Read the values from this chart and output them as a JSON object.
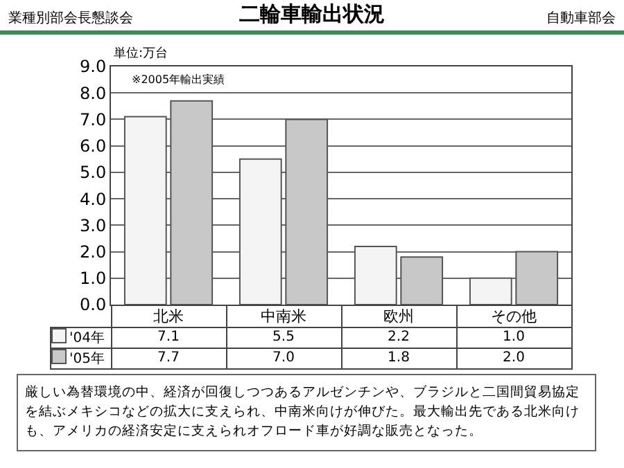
{
  "chart_data": {
    "type": "bar",
    "title": "二輪車輸出状況",
    "categories": [
      "北米",
      "中南米",
      "欧州",
      "その他"
    ],
    "series": [
      {
        "name": "'04年",
        "color": "#f4f4f4",
        "values": [
          7.1,
          5.5,
          2.2,
          1.0
        ],
        "value_labels": [
          "7.1",
          "5.5",
          "2.2",
          "1.0"
        ]
      },
      {
        "name": "'05年",
        "color": "#c8c8c8",
        "values": [
          7.7,
          7.0,
          1.8,
          2.0
        ],
        "value_labels": [
          "7.7",
          "7.0",
          "1.8",
          "2.0"
        ]
      }
    ],
    "ylabel": "単位:万台",
    "ylim": [
      0,
      9
    ],
    "yticks": [
      {
        "value": 0,
        "label": "0.0"
      },
      {
        "value": 1,
        "label": "1.0"
      },
      {
        "value": 2,
        "label": "2.0"
      },
      {
        "value": 3,
        "label": "3.0"
      },
      {
        "value": 4,
        "label": "4.0"
      },
      {
        "value": 5,
        "label": "5.0"
      },
      {
        "value": 6,
        "label": "6.0"
      },
      {
        "value": 7,
        "label": "7.0"
      },
      {
        "value": 8,
        "label": "8.0"
      },
      {
        "value": 9,
        "label": "9.0"
      }
    ],
    "grid": "y",
    "legend": "bottom left",
    "annotations": [
      "業種別部会長懇談会",
      "自動車部会",
      "※2005年輸出実績",
      "厳しい為替環境の中、経済が回復しつつあるアルゼンチンや、ブラジルと二国間貿易協定を結ぶメキシコなどの拡大に支えられ、中南米向けが伸びた。最大輸出先である北米向けも、アメリカの経済安定に支えられオフロード車が好調な販売となった。"
    ]
  }
}
